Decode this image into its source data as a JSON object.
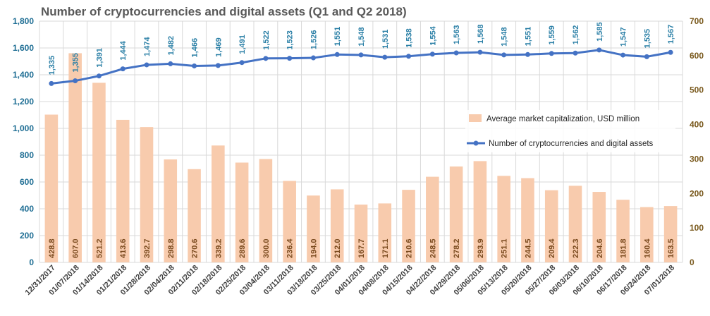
{
  "chart_data": {
    "type": "bar+line",
    "title": "Number of cryptocurrencies and digital assets (Q1 and Q2 2018)",
    "categories": [
      "12/31/2017",
      "01/07/2018",
      "01/14/2018",
      "01/21/2018",
      "01/28/2018",
      "02/04/2018",
      "02/11/2018",
      "02/18/2018",
      "02/25/2018",
      "03/04/2018",
      "03/11/2018",
      "03/18/2018",
      "03/25/2018",
      "04/01/2018",
      "04/08/2018",
      "04/15/2018",
      "04/22/2018",
      "04/29/2018",
      "05/06/2018",
      "05/13/2018",
      "05/20/2018",
      "05/27/2018",
      "06/03/2018",
      "06/10/2018",
      "06/17/2018",
      "06/24/2018",
      "07/01/2018"
    ],
    "series": [
      {
        "name": "Average market capitalization, USD million",
        "type": "bar",
        "axis": "right",
        "color": "#f8cbad",
        "values": [
          428.8,
          607.0,
          521.2,
          413.6,
          392.7,
          298.8,
          270.6,
          339.2,
          289.6,
          300.0,
          236.4,
          194.0,
          212.0,
          167.7,
          171.1,
          210.6,
          248.5,
          278.2,
          293.9,
          251.1,
          244.5,
          209.4,
          222.3,
          204.6,
          181.8,
          160.4,
          163.5
        ],
        "labels": [
          "428.8",
          "607.0",
          "521.2",
          "413.6",
          "392.7",
          "298.8",
          "270.6",
          "339.2",
          "289.6",
          "300.0",
          "236.4",
          "194.0",
          "212.0",
          "167.7",
          "171.1",
          "210.6",
          "248.5",
          "278.2",
          "293.9",
          "251.1",
          "244.5",
          "209.4",
          "222.3",
          "204.6",
          "181.8",
          "160.4",
          "163.5"
        ]
      },
      {
        "name": "Number of cryptocurrencies and digital assets",
        "type": "line",
        "axis": "left",
        "color": "#4472c4",
        "values": [
          1335,
          1355,
          1391,
          1444,
          1474,
          1482,
          1466,
          1469,
          1491,
          1522,
          1523,
          1526,
          1551,
          1548,
          1531,
          1538,
          1554,
          1563,
          1568,
          1548,
          1551,
          1559,
          1562,
          1585,
          1547,
          1535,
          1567
        ],
        "labels": [
          "1,335",
          "1,355",
          "1,391",
          "1,444",
          "1,474",
          "1,482",
          "1,466",
          "1,469",
          "1,491",
          "1,522",
          "1,523",
          "1,526",
          "1,551",
          "1,548",
          "1,531",
          "1,538",
          "1,554",
          "1,563",
          "1,568",
          "1,548",
          "1,551",
          "1,559",
          "1,562",
          "1,585",
          "1,547",
          "1,535",
          "1,567"
        ]
      }
    ],
    "y_left": {
      "range": [
        0,
        1800
      ],
      "ticks": [
        0,
        200,
        400,
        600,
        800,
        1000,
        1200,
        1400,
        1600,
        1800
      ],
      "tick_labels": [
        "0",
        "200",
        "400",
        "600",
        "800",
        "1,000",
        "1,200",
        "1,400",
        "1,600",
        "1,800"
      ]
    },
    "y_right": {
      "range": [
        0,
        700
      ],
      "ticks": [
        0,
        100,
        200,
        300,
        400,
        500,
        600,
        700
      ],
      "tick_labels": [
        "0",
        "100",
        "200",
        "300",
        "400",
        "500",
        "600",
        "700"
      ]
    },
    "grid": true,
    "legend_position": "right",
    "xlabel": "",
    "ylabel": ""
  },
  "colors": {
    "bar": "#f8cbad",
    "line": "#4472c4",
    "line_label": "#2a7fa6",
    "bar_label": "#7a4a1e",
    "left_axis": "#1f6e94",
    "right_axis": "#7a5a1e",
    "grid": "#d9d9d9"
  }
}
